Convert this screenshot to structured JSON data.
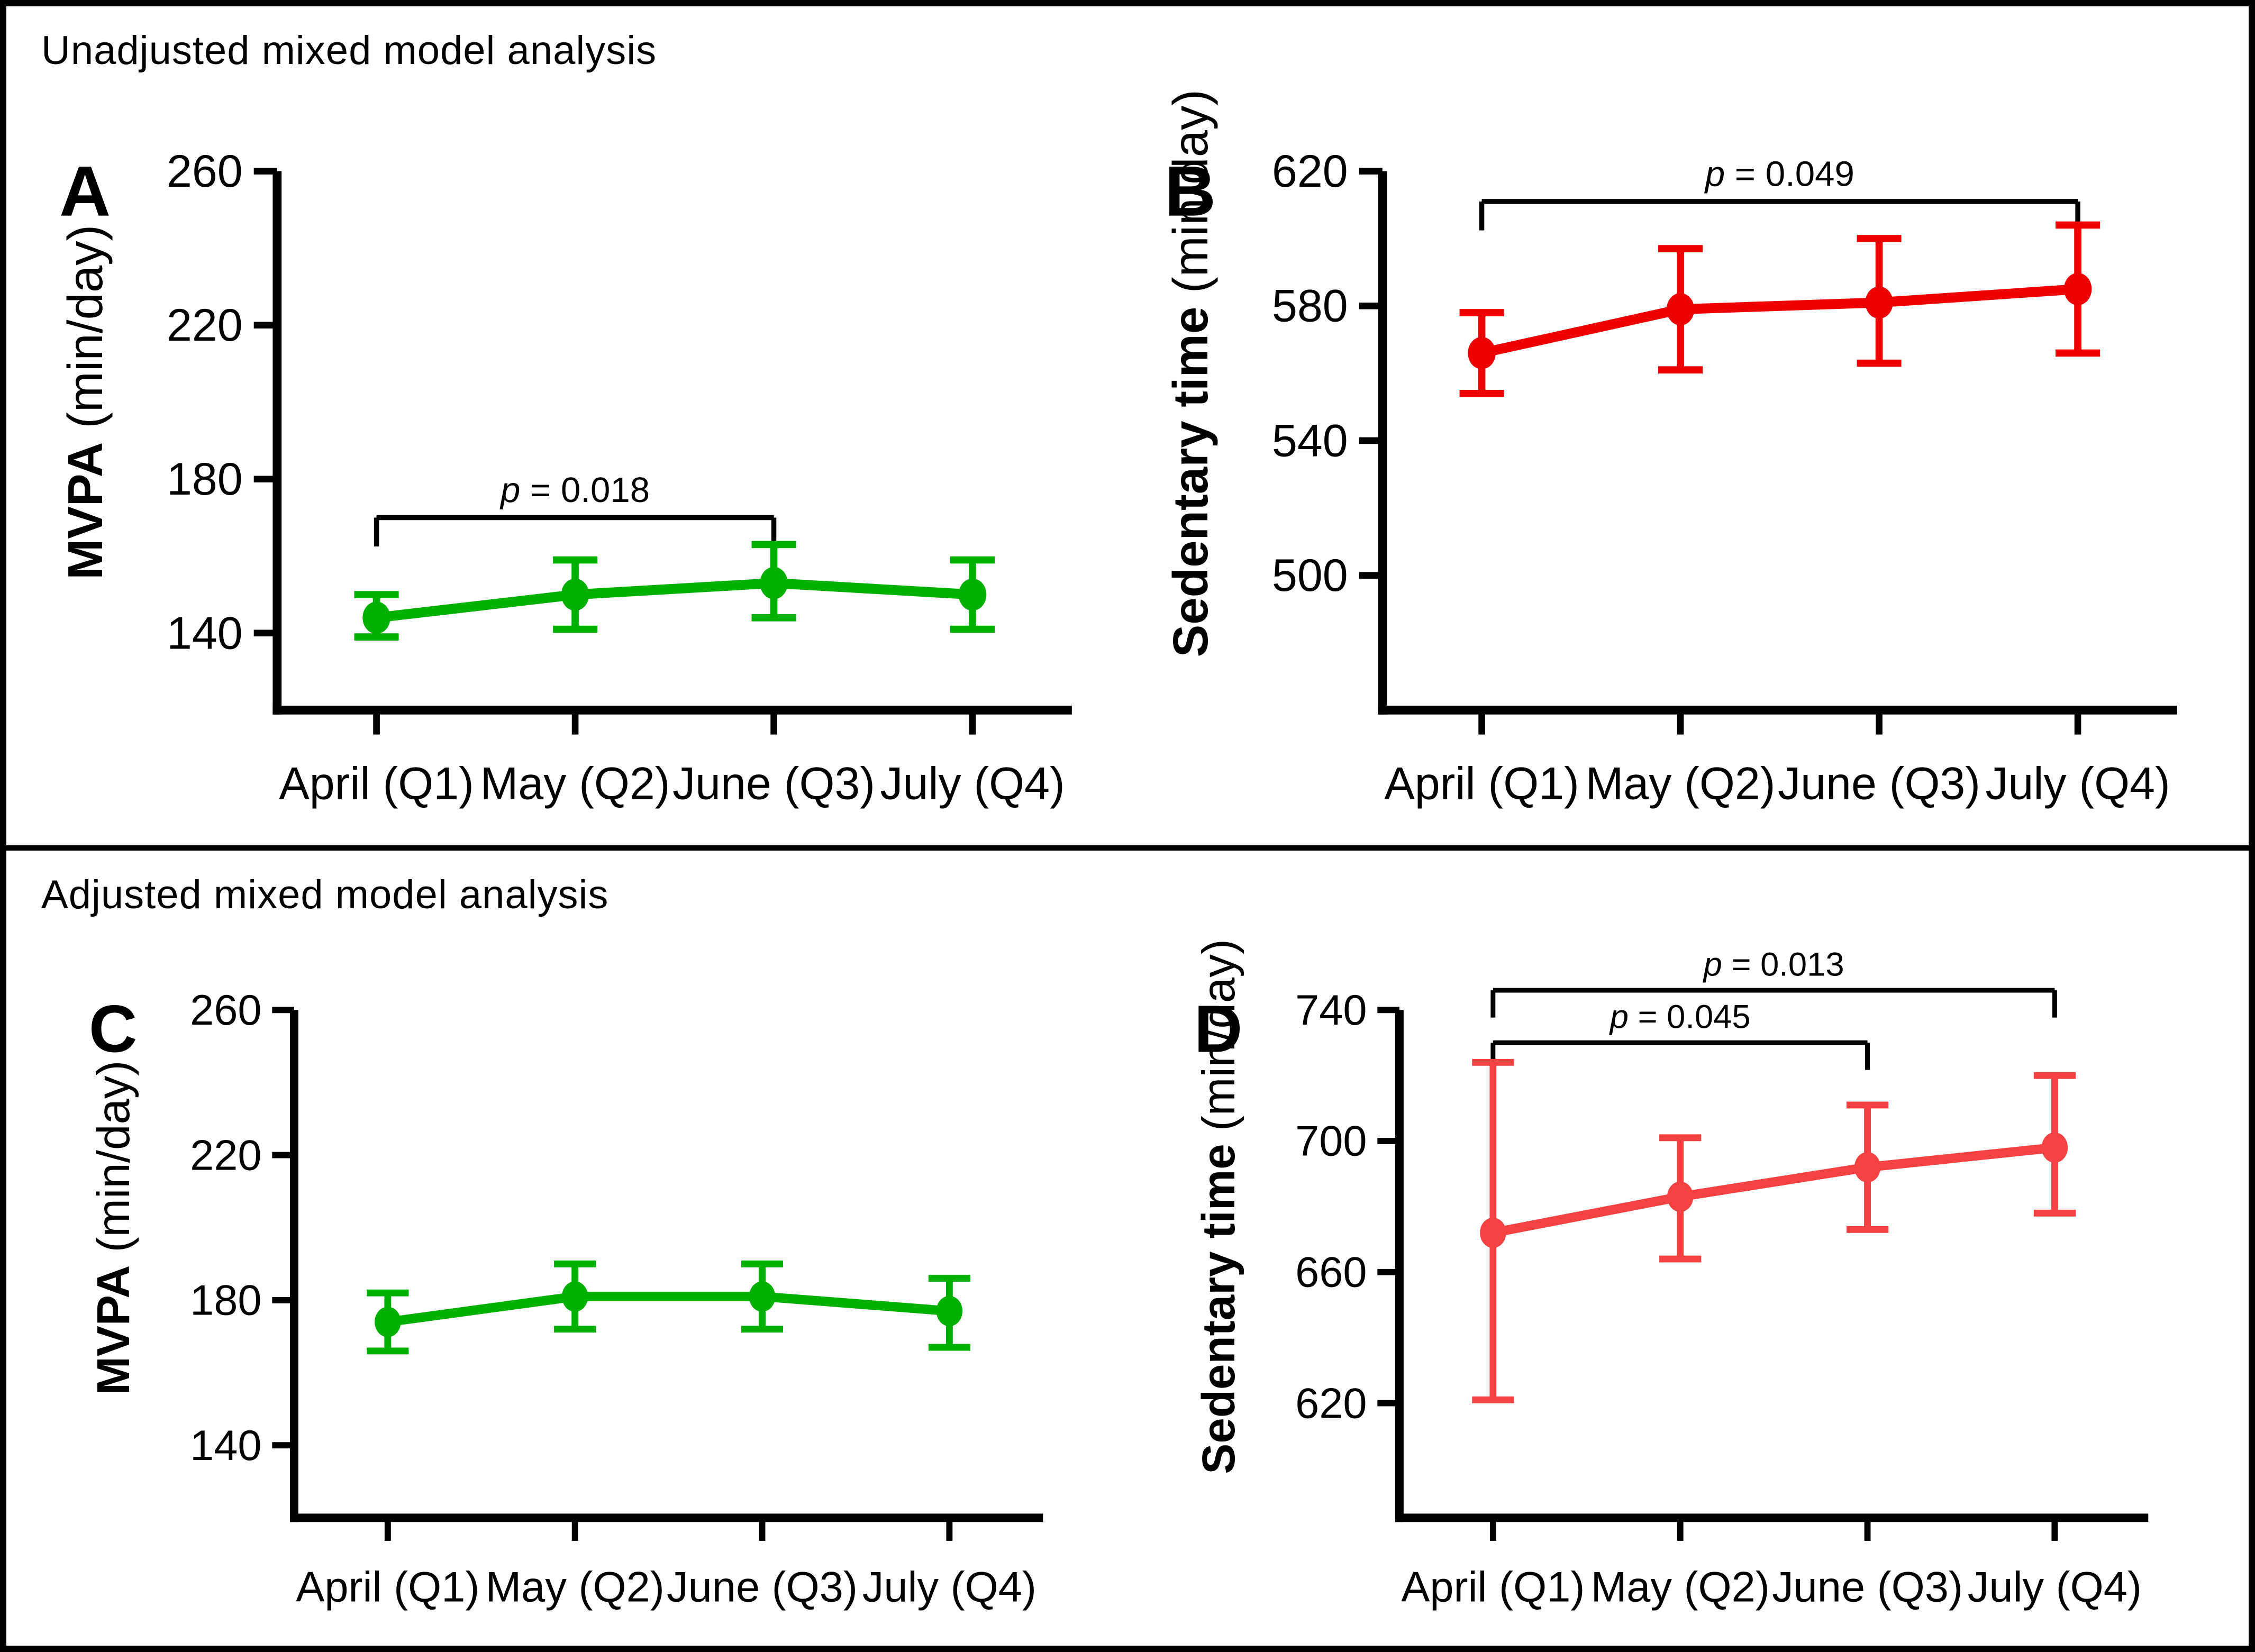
{
  "figure": {
    "background": "#ffffff",
    "border_color": "#000000",
    "sections": [
      {
        "title": "Unadjusted mixed model analysis"
      },
      {
        "title": "Adjusted mixed model analysis"
      }
    ]
  },
  "chart_data": [
    {
      "type": "line",
      "panel_letter": "A",
      "section": "Unadjusted mixed model analysis",
      "ylabel_bold": "MVPA",
      "ylabel_unit": "(min/day)",
      "color": "#00B000",
      "categories": [
        "April (Q1)",
        "May (Q2)",
        "June (Q3)",
        "July (Q4)"
      ],
      "values": [
        144,
        150,
        153,
        150
      ],
      "ci_low": [
        139,
        141,
        144,
        141
      ],
      "ci_high": [
        150,
        159,
        163,
        159
      ],
      "yticks": [
        140,
        180,
        220,
        260
      ],
      "ylim": [
        120,
        260
      ],
      "grid": false,
      "brackets": [
        {
          "from": 0,
          "to": 2,
          "label": "p = 0.018",
          "y": 170
        }
      ]
    },
    {
      "type": "line",
      "panel_letter": "B",
      "section": "Unadjusted mixed model analysis",
      "ylabel_bold": "Sedentary time",
      "ylabel_unit": "(min/day)",
      "color": "#EE0000",
      "categories": [
        "April (Q1)",
        "May (Q2)",
        "June (Q3)",
        "July (Q4)"
      ],
      "values": [
        566,
        579,
        581,
        585
      ],
      "ci_low": [
        554,
        561,
        563,
        566
      ],
      "ci_high": [
        578,
        597,
        600,
        604
      ],
      "yticks": [
        500,
        540,
        580,
        620
      ],
      "ylim": [
        460,
        620
      ],
      "grid": false,
      "brackets": [
        {
          "from": 0,
          "to": 3,
          "label": "p = 0.049",
          "y": 611
        }
      ]
    },
    {
      "type": "line",
      "panel_letter": "C",
      "section": "Adjusted mixed model analysis",
      "ylabel_bold": "MVPA",
      "ylabel_unit": "(min/day)",
      "color": "#00B000",
      "categories": [
        "April (Q1)",
        "May (Q2)",
        "June (Q3)",
        "July (Q4)"
      ],
      "values": [
        174,
        181,
        181,
        177
      ],
      "ci_low": [
        166,
        172,
        172,
        167
      ],
      "ci_high": [
        182,
        190,
        190,
        186
      ],
      "yticks": [
        140,
        180,
        220,
        260
      ],
      "ylim": [
        120,
        260
      ],
      "grid": false,
      "brackets": []
    },
    {
      "type": "line",
      "panel_letter": "D",
      "section": "Adjusted mixed model analysis",
      "ylabel_bold": "Sedentary time",
      "ylabel_unit": "(min/day)",
      "color": "#F44242",
      "categories": [
        "April (Q1)",
        "May (Q2)",
        "June (Q3)",
        "July (Q4)"
      ],
      "values": [
        672,
        683,
        692,
        698
      ],
      "ci_low": [
        621,
        664,
        673,
        678
      ],
      "ci_high": [
        724,
        701,
        711,
        720
      ],
      "yticks": [
        620,
        660,
        700,
        740
      ],
      "ylim": [
        585,
        740
      ],
      "grid": false,
      "brackets": [
        {
          "from": 0,
          "to": 2,
          "label": "p = 0.045",
          "y": 730
        },
        {
          "from": 0,
          "to": 3,
          "label": "p = 0.013",
          "y": 746
        }
      ]
    }
  ]
}
